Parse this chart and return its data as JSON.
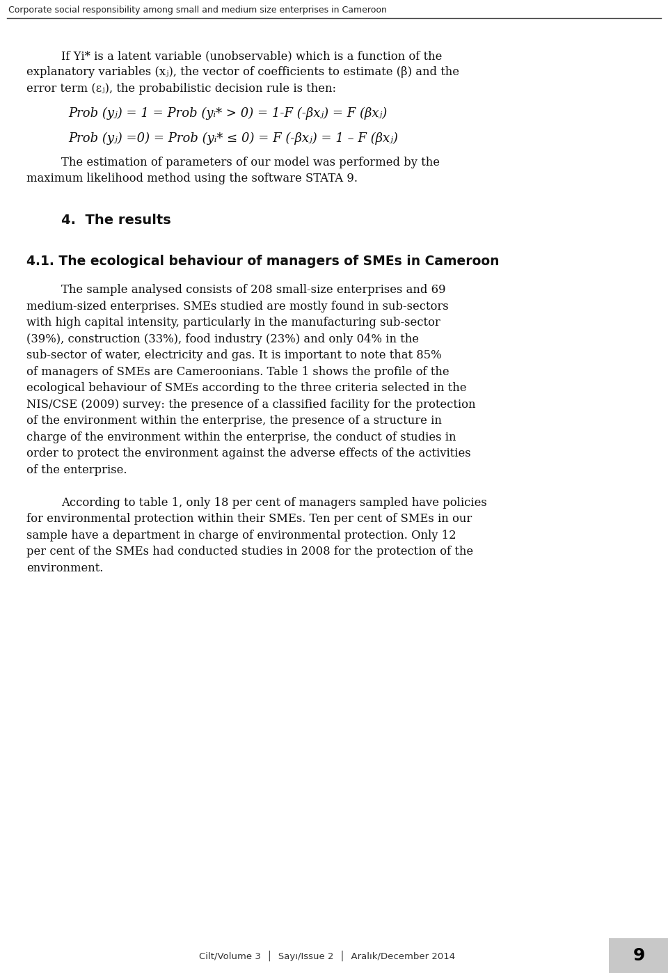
{
  "bg_color": "#ffffff",
  "header_text": "Corporate social responsibility among small and medium size enterprises in Cameroon",
  "header_color": "#000000",
  "p1_line1": "If Yi* is a latent variable (unobservable) which is a function of the",
  "p1_line2": "explanatory variables (xⱼ), the vector of coefficients to estimate (β) and the",
  "p1_line3": "error term (εⱼ), the probabilistic decision rule is then:",
  "formula1": "Prob (yⱼ) = 1 = Prob (yᵢ* > 0) = 1-F (-βxⱼ) = F (βxⱼ)",
  "formula2": "Prob (yⱼ) =0) = Prob (yᵢ* ≤ 0) = F (-βxⱼ) = 1 – F (βxⱼ)",
  "p2_line1": "The estimation of parameters of our model was performed by the",
  "p2_line2": "maximum likelihood method using the software STATA 9.",
  "section": "4.  The results",
  "subsection": "4.1. The ecological behaviour of managers of SMEs in Cameroon",
  "p3_lines": [
    "The sample analysed consists of 208 small-size enterprises and 69",
    "medium-sized enterprises. SMEs studied are mostly found in sub-sectors",
    "with high capital intensity, particularly in the manufacturing sub-sector",
    "(39%), construction (33%), food industry (23%) and only 04% in the",
    "sub-sector of water, electricity and gas. It is important to note that 85%",
    "of managers of SMEs are Cameroonians. Table 1 shows the profile of the",
    "ecological behaviour of SMEs according to the three criteria selected in the",
    "NIS/CSE (2009) survey: the presence of a classified facility for the protection",
    "of the environment within the enterprise, the presence of a structure in",
    "charge of the environment within the enterprise, the conduct of studies in",
    "order to protect the environment against the adverse effects of the activities",
    "of the enterprise."
  ],
  "p4_lines": [
    "According to table 1, only 18 per cent of managers sampled have policies",
    "for environmental protection within their SMEs. Ten per cent of SMEs in our",
    "sample have a department in charge of environmental protection. Only 12",
    "per cent of the SMEs had conducted studies in 2008 for the protection of the",
    "environment."
  ],
  "footer_text": "Cilt/Volume 3  │  Sayı/Issue 2  │  Aralık/December 2014",
  "footer_page": "9",
  "footer_bg": "#c8c8c8",
  "body_fs": 11.8,
  "formula_fs": 13.0,
  "section_fs": 14.0,
  "subsection_fs": 13.5,
  "header_fs": 9.0,
  "footer_fs": 9.5,
  "page_fs": 18
}
